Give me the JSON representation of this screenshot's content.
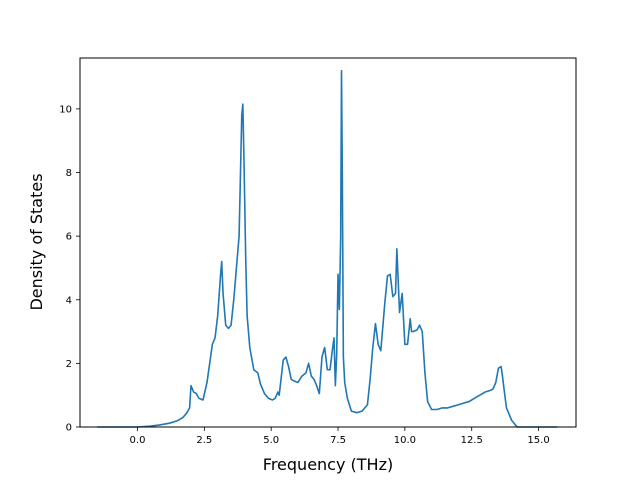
{
  "chart_data": {
    "type": "line",
    "title": "",
    "xlabel": "Frequency (THz)",
    "ylabel": "Density of States",
    "xlim": [
      -2.15,
      16.4
    ],
    "ylim": [
      0,
      11.6
    ],
    "xticks": [
      0.0,
      2.5,
      5.0,
      7.5,
      10.0,
      12.5,
      15.0
    ],
    "xtick_labels": [
      "0.0",
      "2.5",
      "5.0",
      "7.5",
      "10.0",
      "12.5",
      "15.0"
    ],
    "yticks": [
      0,
      2,
      4,
      6,
      8,
      10
    ],
    "ytick_labels": [
      "0",
      "2",
      "4",
      "6",
      "8",
      "10"
    ],
    "grid": false,
    "legend": "none",
    "series": [
      {
        "color": "#1f77b4",
        "x": [
          -1.5,
          -1.0,
          -0.5,
          0.0,
          0.4,
          0.8,
          1.2,
          1.5,
          1.7,
          1.85,
          1.95,
          2.0,
          2.1,
          2.2,
          2.3,
          2.45,
          2.6,
          2.7,
          2.8,
          2.9,
          3.0,
          3.1,
          3.15,
          3.2,
          3.3,
          3.4,
          3.5,
          3.6,
          3.7,
          3.8,
          3.9,
          3.94,
          3.98,
          4.05,
          4.1,
          4.2,
          4.35,
          4.5,
          4.6,
          4.75,
          4.9,
          5.05,
          5.15,
          5.25,
          5.3,
          5.45,
          5.55,
          5.65,
          5.75,
          5.85,
          6.0,
          6.15,
          6.3,
          6.4,
          6.5,
          6.6,
          6.7,
          6.8,
          6.9,
          7.0,
          7.1,
          7.2,
          7.3,
          7.35,
          7.4,
          7.45,
          7.5,
          7.55,
          7.6,
          7.63,
          7.66,
          7.7,
          7.75,
          7.85,
          8.0,
          8.2,
          8.4,
          8.6,
          8.7,
          8.8,
          8.9,
          9.0,
          9.1,
          9.25,
          9.35,
          9.45,
          9.55,
          9.65,
          9.7,
          9.75,
          9.8,
          9.9,
          10.0,
          10.1,
          10.2,
          10.25,
          10.3,
          10.45,
          10.55,
          10.65,
          10.75,
          10.85,
          11.0,
          11.2,
          11.4,
          11.6,
          11.8,
          12.0,
          12.2,
          12.4,
          12.6,
          12.8,
          13.0,
          13.2,
          13.3,
          13.4,
          13.5,
          13.6,
          13.65,
          13.7,
          13.8,
          14.0,
          14.2,
          14.3,
          14.5,
          15.0,
          15.7
        ],
        "y": [
          0.0,
          0.0,
          0.0,
          0.0,
          0.02,
          0.06,
          0.12,
          0.2,
          0.3,
          0.45,
          0.6,
          1.3,
          1.1,
          1.05,
          0.9,
          0.85,
          1.4,
          2.0,
          2.6,
          2.8,
          3.5,
          4.7,
          5.2,
          4.2,
          3.2,
          3.1,
          3.2,
          4.0,
          5.0,
          6.0,
          9.8,
          10.15,
          8.5,
          5.2,
          3.5,
          2.5,
          1.8,
          1.7,
          1.35,
          1.05,
          0.9,
          0.85,
          0.9,
          1.1,
          1.0,
          2.1,
          2.2,
          1.9,
          1.5,
          1.45,
          1.4,
          1.6,
          1.7,
          2.0,
          1.6,
          1.5,
          1.3,
          1.05,
          2.2,
          2.5,
          1.8,
          1.8,
          2.5,
          2.8,
          1.3,
          2.3,
          4.8,
          3.7,
          6.0,
          11.2,
          8.0,
          2.2,
          1.4,
          0.9,
          0.5,
          0.45,
          0.5,
          0.7,
          1.5,
          2.5,
          3.25,
          2.6,
          2.4,
          3.9,
          4.75,
          4.8,
          4.1,
          4.2,
          5.6,
          4.6,
          3.6,
          4.2,
          2.6,
          2.6,
          3.4,
          3.0,
          3.0,
          3.05,
          3.2,
          3.0,
          1.7,
          0.8,
          0.55,
          0.55,
          0.6,
          0.6,
          0.65,
          0.7,
          0.75,
          0.8,
          0.9,
          1.0,
          1.1,
          1.15,
          1.2,
          1.4,
          1.85,
          1.9,
          1.6,
          1.25,
          0.6,
          0.2,
          0.0,
          0.0,
          0.0,
          0.0,
          0.0
        ]
      }
    ]
  }
}
